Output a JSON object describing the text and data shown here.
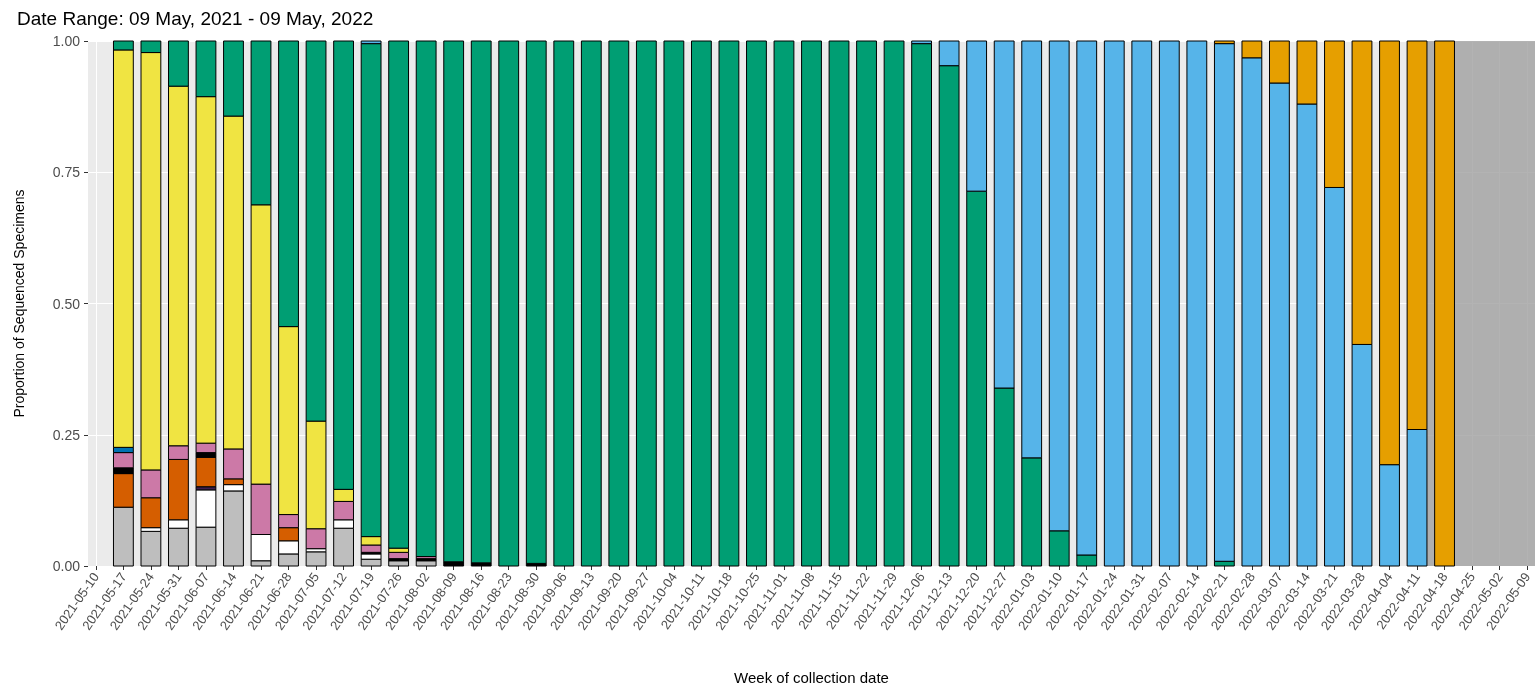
{
  "chart_data": {
    "type": "bar",
    "title": "Date Range: 09 May, 2021 - 09 May, 2022",
    "xlabel": "Week of collection date",
    "ylabel": "Proportion of Sequenced Specimens",
    "stacked": true,
    "grid": true,
    "x": [
      "2021-05-17",
      "2021-05-24",
      "2021-05-31",
      "2021-06-07",
      "2021-06-14",
      "2021-06-21",
      "2021-06-28",
      "2021-07-05",
      "2021-07-12",
      "2021-07-19",
      "2021-07-26",
      "2021-08-02",
      "2021-08-09",
      "2021-08-16",
      "2021-08-23",
      "2021-08-30",
      "2021-09-06",
      "2021-09-13",
      "2021-09-20",
      "2021-09-27",
      "2021-10-04",
      "2021-10-11",
      "2021-10-18",
      "2021-10-25",
      "2021-11-01",
      "2021-11-08",
      "2021-11-15",
      "2021-11-22",
      "2021-11-29",
      "2021-12-06",
      "2021-12-13",
      "2021-12-20",
      "2021-12-27",
      "2022-01-03",
      "2022-01-10",
      "2022-01-17",
      "2022-01-24",
      "2022-01-31",
      "2022-02-07",
      "2022-02-14",
      "2022-02-21",
      "2022-02-28",
      "2022-03-07",
      "2022-03-14",
      "2022-03-21",
      "2022-03-28",
      "2022-04-04",
      "2022-04-11",
      "2022-04-18"
    ],
    "xlim": [
      "2021-05-08",
      "2022-05-11"
    ],
    "xticks": [
      "2021-05-10",
      "2021-05-17",
      "2021-05-24",
      "2021-05-31",
      "2021-06-07",
      "2021-06-14",
      "2021-06-21",
      "2021-06-28",
      "2021-07-05",
      "2021-07-12",
      "2021-07-19",
      "2021-07-26",
      "2021-08-02",
      "2021-08-09",
      "2021-08-16",
      "2021-08-23",
      "2021-08-30",
      "2021-09-06",
      "2021-09-13",
      "2021-09-20",
      "2021-09-27",
      "2021-10-04",
      "2021-10-11",
      "2021-10-18",
      "2021-10-25",
      "2021-11-01",
      "2021-11-08",
      "2021-11-15",
      "2021-11-22",
      "2021-11-29",
      "2021-12-06",
      "2021-12-13",
      "2021-12-20",
      "2021-12-27",
      "2022-01-03",
      "2022-01-10",
      "2022-01-17",
      "2022-01-24",
      "2022-01-31",
      "2022-02-07",
      "2022-02-14",
      "2022-02-21",
      "2022-02-28",
      "2022-03-07",
      "2022-03-14",
      "2022-03-21",
      "2022-03-28",
      "2022-04-04",
      "2022-04-11",
      "2022-04-18",
      "2022-04-25",
      "2022-05-02",
      "2022-05-09"
    ],
    "ylim": [
      0,
      1
    ],
    "yticks": [
      {
        "value": 0,
        "label": "0.00"
      },
      {
        "value": 0.25,
        "label": "0.25"
      },
      {
        "value": 0.5,
        "label": "0.50"
      },
      {
        "value": 0.75,
        "label": "0.75"
      },
      {
        "value": 1,
        "label": "1.00"
      }
    ],
    "bands": [
      {
        "axis": "x",
        "from": "2022-04-09",
        "to": "2022-05-11",
        "color": "#a0a0a0"
      }
    ],
    "series": [
      {
        "color": "#bebebe",
        "values": [
          0.112,
          0.066,
          0.072,
          0.074,
          0.143,
          0.01,
          0.023,
          0.027,
          0.072,
          0.013,
          0.01,
          0.01,
          null,
          null,
          null,
          null,
          null,
          null,
          null,
          null,
          null,
          null,
          null,
          null,
          null,
          null,
          null,
          null,
          null,
          null,
          null,
          null,
          null,
          null,
          null,
          null,
          null,
          null,
          null,
          null,
          null,
          null,
          null,
          null,
          null,
          null,
          null,
          null,
          null
        ]
      },
      {
        "color": "#ffffff",
        "values": [
          null,
          0.007,
          0.016,
          0.071,
          0.012,
          0.05,
          0.025,
          0.006,
          0.016,
          0.01,
          null,
          null,
          null,
          null,
          null,
          null,
          null,
          null,
          null,
          null,
          null,
          null,
          null,
          null,
          null,
          null,
          null,
          null,
          null,
          null,
          null,
          null,
          null,
          null,
          null,
          null,
          null,
          null,
          null,
          null,
          null,
          null,
          null,
          null,
          null,
          null,
          null,
          null,
          null
        ]
      },
      {
        "color": "#3d1f4f",
        "values": [
          null,
          null,
          null,
          0.006,
          null,
          null,
          null,
          null,
          null,
          null,
          null,
          null,
          null,
          null,
          null,
          null,
          null,
          null,
          null,
          null,
          null,
          null,
          null,
          null,
          null,
          null,
          null,
          null,
          null,
          null,
          null,
          null,
          null,
          null,
          null,
          null,
          null,
          null,
          null,
          null,
          null,
          null,
          null,
          null,
          null,
          null,
          null,
          null,
          null
        ]
      },
      {
        "color": "#d55e00",
        "values": [
          0.064,
          0.057,
          0.115,
          0.056,
          0.011,
          null,
          0.025,
          null,
          null,
          null,
          null,
          null,
          null,
          null,
          null,
          null,
          null,
          null,
          null,
          null,
          null,
          null,
          null,
          null,
          null,
          null,
          null,
          null,
          null,
          null,
          null,
          null,
          null,
          null,
          null,
          null,
          null,
          null,
          null,
          null,
          null,
          null,
          null,
          null,
          null,
          null,
          null,
          null,
          null
        ]
      },
      {
        "color": "#000000",
        "values": [
          0.011,
          null,
          null,
          0.009,
          null,
          null,
          null,
          null,
          null,
          0.003,
          0.004,
          0.004,
          0.008,
          0.006,
          null,
          0.005,
          null,
          null,
          null,
          null,
          null,
          null,
          null,
          null,
          null,
          null,
          null,
          null,
          null,
          null,
          null,
          null,
          null,
          null,
          null,
          null,
          null,
          null,
          null,
          null,
          null,
          null,
          null,
          null,
          null,
          null,
          null,
          null,
          null
        ]
      },
      {
        "color": "#cc79a7",
        "values": [
          0.029,
          0.053,
          0.026,
          0.018,
          0.057,
          0.096,
          0.025,
          0.038,
          0.035,
          0.014,
          0.012,
          0.004,
          null,
          null,
          null,
          null,
          null,
          null,
          null,
          null,
          null,
          null,
          null,
          null,
          null,
          null,
          null,
          null,
          null,
          null,
          null,
          null,
          null,
          null,
          null,
          null,
          null,
          null,
          null,
          null,
          null,
          null,
          null,
          null,
          null,
          null,
          null,
          null,
          null
        ]
      },
      {
        "color": "#0072b2",
        "values": [
          0.01,
          null,
          null,
          null,
          null,
          null,
          null,
          null,
          null,
          null,
          null,
          null,
          null,
          null,
          null,
          null,
          null,
          null,
          null,
          null,
          null,
          null,
          null,
          null,
          null,
          null,
          null,
          null,
          null,
          null,
          null,
          null,
          null,
          null,
          null,
          null,
          null,
          null,
          null,
          null,
          null,
          null,
          null,
          null,
          null,
          null,
          null,
          null,
          null
        ]
      },
      {
        "color": "#f0e442",
        "values": [
          0.757,
          0.795,
          0.685,
          0.66,
          0.634,
          0.532,
          0.358,
          0.205,
          0.023,
          0.016,
          0.008,
          null,
          null,
          null,
          null,
          null,
          null,
          null,
          null,
          null,
          null,
          null,
          null,
          null,
          null,
          null,
          null,
          null,
          null,
          null,
          null,
          null,
          null,
          null,
          null,
          null,
          null,
          null,
          null,
          null,
          null,
          null,
          null,
          null,
          null,
          null,
          null,
          null,
          null
        ]
      },
      {
        "color": "#009e73",
        "values": [
          0.017,
          0.022,
          0.086,
          0.106,
          0.143,
          0.312,
          0.544,
          0.724,
          0.854,
          0.939,
          0.966,
          0.982,
          0.992,
          0.994,
          1,
          0.995,
          1,
          1,
          1,
          1,
          1,
          1,
          1,
          1,
          1,
          1,
          1,
          1,
          1,
          0.995,
          0.953,
          0.714,
          0.339,
          0.206,
          0.067,
          0.021,
          null,
          null,
          null,
          null,
          0.009,
          null,
          null,
          null,
          null,
          null,
          null,
          null,
          null
        ]
      },
      {
        "color": "#56b4e9",
        "values": [
          null,
          null,
          null,
          null,
          null,
          null,
          null,
          null,
          null,
          0.005,
          null,
          null,
          null,
          null,
          null,
          null,
          null,
          null,
          null,
          null,
          null,
          null,
          null,
          null,
          null,
          null,
          null,
          null,
          null,
          0.005,
          0.047,
          0.286,
          0.661,
          0.794,
          0.933,
          0.979,
          1,
          1,
          1,
          1,
          0.986,
          0.968,
          0.92,
          0.88,
          0.721,
          0.422,
          0.193,
          0.26,
          null
        ]
      },
      {
        "color": "#e69f00",
        "values": [
          null,
          null,
          null,
          null,
          null,
          null,
          null,
          null,
          null,
          null,
          null,
          null,
          null,
          null,
          null,
          null,
          null,
          null,
          null,
          null,
          null,
          null,
          null,
          null,
          null,
          null,
          null,
          null,
          null,
          null,
          null,
          null,
          null,
          null,
          null,
          null,
          null,
          null,
          null,
          null,
          0.005,
          0.032,
          0.08,
          0.12,
          0.279,
          0.578,
          0.807,
          0.74,
          1
        ]
      }
    ]
  }
}
